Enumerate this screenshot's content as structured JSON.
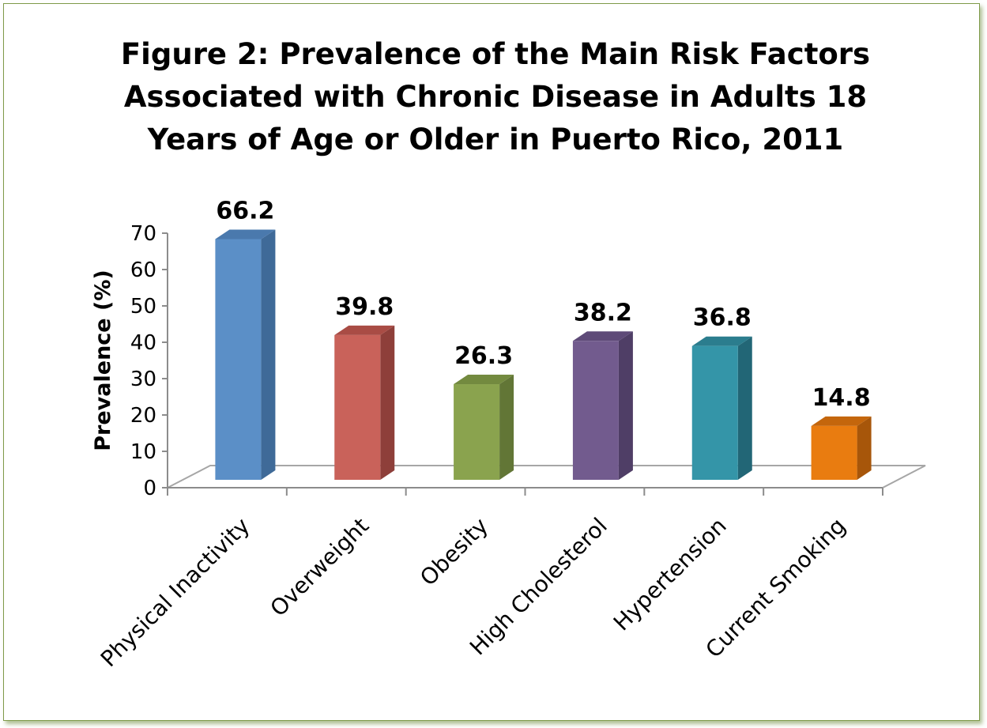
{
  "chart_data": {
    "type": "bar",
    "title": [
      "Figure 2: Prevalence of the Main Risk Factors",
      "Associated with Chronic Disease in Adults 18",
      "Years of Age or Older in Puerto Rico, 2011"
    ],
    "xlabel": "",
    "ylabel": "Prevalence (%)",
    "ylim": [
      0,
      70
    ],
    "yticks": [
      "0",
      "10",
      "20",
      "30",
      "40",
      "50",
      "60",
      "70"
    ],
    "categories": [
      "Physical Inactivity",
      "Overweight",
      "Obesity",
      "High Cholesterol",
      "Hypertension",
      "Current Smoking"
    ],
    "values": [
      66.2,
      39.8,
      26.3,
      38.2,
      36.8,
      14.8
    ],
    "data_labels": [
      "66.2",
      "39.8",
      "26.3",
      "38.2",
      "36.8",
      "14.8"
    ],
    "bar_colors": [
      {
        "front": "#5b8fc7",
        "side": "#3f6a98",
        "top": "#4a79ad"
      },
      {
        "front": "#c9625a",
        "side": "#8e3f3a",
        "top": "#a94c45"
      },
      {
        "front": "#8aa34e",
        "side": "#627636",
        "top": "#738a3f"
      },
      {
        "front": "#725b8e",
        "side": "#4f3e66",
        "top": "#5e4a78"
      },
      {
        "front": "#3495a8",
        "side": "#226676",
        "top": "#2b7d8e"
      },
      {
        "front": "#e97c10",
        "side": "#a7560a",
        "top": "#c4660c"
      }
    ],
    "grid": false,
    "legend": "none",
    "style": "3d-column"
  }
}
